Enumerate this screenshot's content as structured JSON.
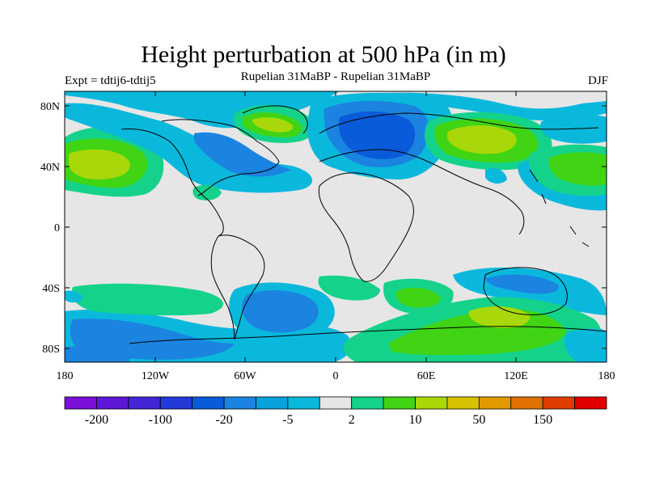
{
  "title": "Height perturbation at 500 hPa (in m)",
  "subtitle": "Rupelian  31MaBP - Rupelian  31MaBP",
  "expt_label": "Expt = tdtij6-tdtij5",
  "season": "DJF",
  "lat_ticks": [
    "80N",
    "40N",
    "0",
    "40S",
    "80S"
  ],
  "lon_ticks": [
    "180",
    "120W",
    "60W",
    "0",
    "60E",
    "120E",
    "180"
  ],
  "colorbar": {
    "colors": [
      "#7a10d8",
      "#5e17d6",
      "#4425d6",
      "#2339d9",
      "#0a5bd9",
      "#1a84e0",
      "#0aa2dc",
      "#0ab8dc",
      "#e6e6e6",
      "#14d28a",
      "#40d414",
      "#a8d80a",
      "#d6c200",
      "#e09a00",
      "#e07000",
      "#e03c00",
      "#e00000"
    ],
    "labels": [
      "-200",
      "-100",
      "-20",
      "-5",
      "2",
      "10",
      "50",
      "150"
    ]
  },
  "colors": {
    "neutral": "#e6e6e6",
    "light_blue": "#0ab8dc",
    "mid_blue": "#1a84e0",
    "dark_blue": "#0a5bd9",
    "light_green": "#14d28a",
    "green": "#40d414",
    "yellow_green": "#a8d80a",
    "coast": "#000000"
  }
}
